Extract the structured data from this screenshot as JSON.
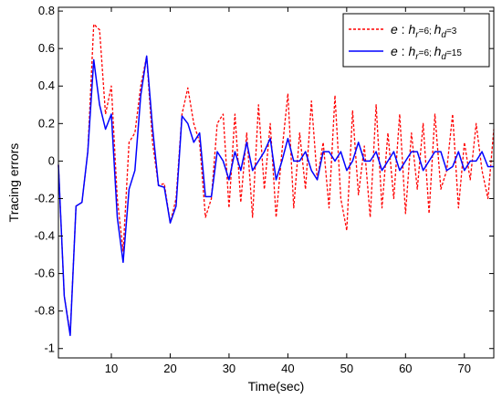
{
  "chart_data": {
    "type": "line",
    "title": "",
    "xlabel": "Time(sec)",
    "ylabel": "Tracing errors",
    "xlim": [
      1,
      75
    ],
    "ylim": [
      -1.05,
      0.82
    ],
    "x_ticks": [
      10,
      20,
      30,
      40,
      50,
      60,
      70
    ],
    "y_ticks": [
      -1,
      -0.8,
      -0.6,
      -0.4,
      -0.2,
      0,
      0.2,
      0.4,
      0.6,
      0.8
    ],
    "x_tick_labels": [
      "10",
      "20",
      "30",
      "40",
      "50",
      "60",
      "70"
    ],
    "y_tick_labels": [
      "-1",
      "-0.8",
      "-0.6",
      "-0.4",
      "-0.2",
      "0",
      "0.2",
      "0.4",
      "0.6",
      "0.8"
    ],
    "grid": false,
    "legend_position": "top-right",
    "legend": [
      {
        "var": "e",
        "sep": " : ",
        "h1": "h",
        "sub1": "r",
        "eq1": "=6; ",
        "h2": "h",
        "sub2": "d",
        "eq2": "=3"
      },
      {
        "var": "e",
        "sep": " : ",
        "h1": "h",
        "sub1": "r",
        "eq1": "=6; ",
        "h2": "h",
        "sub2": "d",
        "eq2": "=15"
      }
    ],
    "series": [
      {
        "color": "#ff0000",
        "style": "dashed",
        "x": [
          1,
          2,
          3,
          4,
          5,
          6,
          7,
          8,
          9,
          10,
          11,
          12,
          13,
          14,
          15,
          16,
          17,
          18,
          19,
          20,
          21,
          22,
          23,
          24,
          25,
          26,
          27,
          28,
          29,
          30,
          31,
          32,
          33,
          34,
          35,
          36,
          37,
          38,
          39,
          40,
          41,
          42,
          43,
          44,
          45,
          46,
          47,
          48,
          49,
          50,
          51,
          52,
          53,
          54,
          55,
          56,
          57,
          58,
          59,
          60,
          61,
          62,
          63,
          64,
          65,
          66,
          67,
          68,
          69,
          70,
          71,
          72,
          73,
          74,
          75
        ],
        "y": [
          -0.02,
          -0.72,
          -0.92,
          -0.24,
          -0.22,
          0.05,
          0.73,
          0.7,
          0.25,
          0.4,
          -0.2,
          -0.48,
          0.1,
          0.15,
          0.4,
          0.56,
          0.1,
          -0.13,
          -0.12,
          -0.33,
          -0.2,
          0.25,
          0.39,
          0.2,
          0.1,
          -0.3,
          -0.2,
          0.2,
          0.25,
          -0.25,
          0.25,
          -0.22,
          0.15,
          -0.3,
          0.3,
          -0.15,
          0.2,
          -0.3,
          0.05,
          0.36,
          -0.25,
          0.15,
          -0.15,
          0.32,
          -0.1,
          0.1,
          -0.25,
          0.35,
          -0.2,
          -0.37,
          0.27,
          -0.18,
          0.08,
          -0.3,
          0.3,
          -0.25,
          0.15,
          -0.2,
          0.25,
          -0.28,
          0.15,
          -0.15,
          0.2,
          -0.28,
          0.25,
          -0.15,
          -0.05,
          0.25,
          -0.25,
          0.1,
          -0.1,
          0.2,
          -0.05,
          -0.2,
          0.17
        ]
      },
      {
        "color": "#0000ff",
        "style": "solid",
        "x": [
          1,
          2,
          3,
          4,
          5,
          6,
          7,
          8,
          9,
          10,
          11,
          12,
          13,
          14,
          15,
          16,
          17,
          18,
          19,
          20,
          21,
          22,
          23,
          24,
          25,
          26,
          27,
          28,
          29,
          30,
          31,
          32,
          33,
          34,
          35,
          36,
          37,
          38,
          39,
          40,
          41,
          42,
          43,
          44,
          45,
          46,
          47,
          48,
          49,
          50,
          51,
          52,
          53,
          54,
          55,
          56,
          57,
          58,
          59,
          60,
          61,
          62,
          63,
          64,
          65,
          66,
          67,
          68,
          69,
          70,
          71,
          72,
          73,
          74,
          75
        ],
        "y": [
          -0.02,
          -0.72,
          -0.93,
          -0.24,
          -0.22,
          0.05,
          0.54,
          0.3,
          0.17,
          0.25,
          -0.3,
          -0.54,
          -0.15,
          -0.05,
          0.35,
          0.56,
          0.18,
          -0.13,
          -0.14,
          -0.33,
          -0.24,
          0.24,
          0.2,
          0.1,
          0.15,
          -0.19,
          -0.19,
          0.05,
          0.0,
          -0.1,
          0.05,
          -0.05,
          0.1,
          -0.05,
          0.0,
          0.05,
          0.12,
          -0.1,
          0.0,
          0.12,
          0.0,
          0.0,
          0.05,
          -0.05,
          -0.1,
          0.05,
          0.05,
          0.0,
          0.05,
          -0.05,
          0.0,
          0.1,
          0.0,
          0.0,
          0.05,
          -0.05,
          0.0,
          0.05,
          -0.05,
          0.0,
          0.05,
          0.05,
          -0.05,
          0.0,
          0.05,
          0.05,
          -0.05,
          -0.03,
          0.05,
          -0.05,
          0.0,
          0.0,
          0.05,
          -0.03,
          -0.03
        ]
      }
    ]
  }
}
